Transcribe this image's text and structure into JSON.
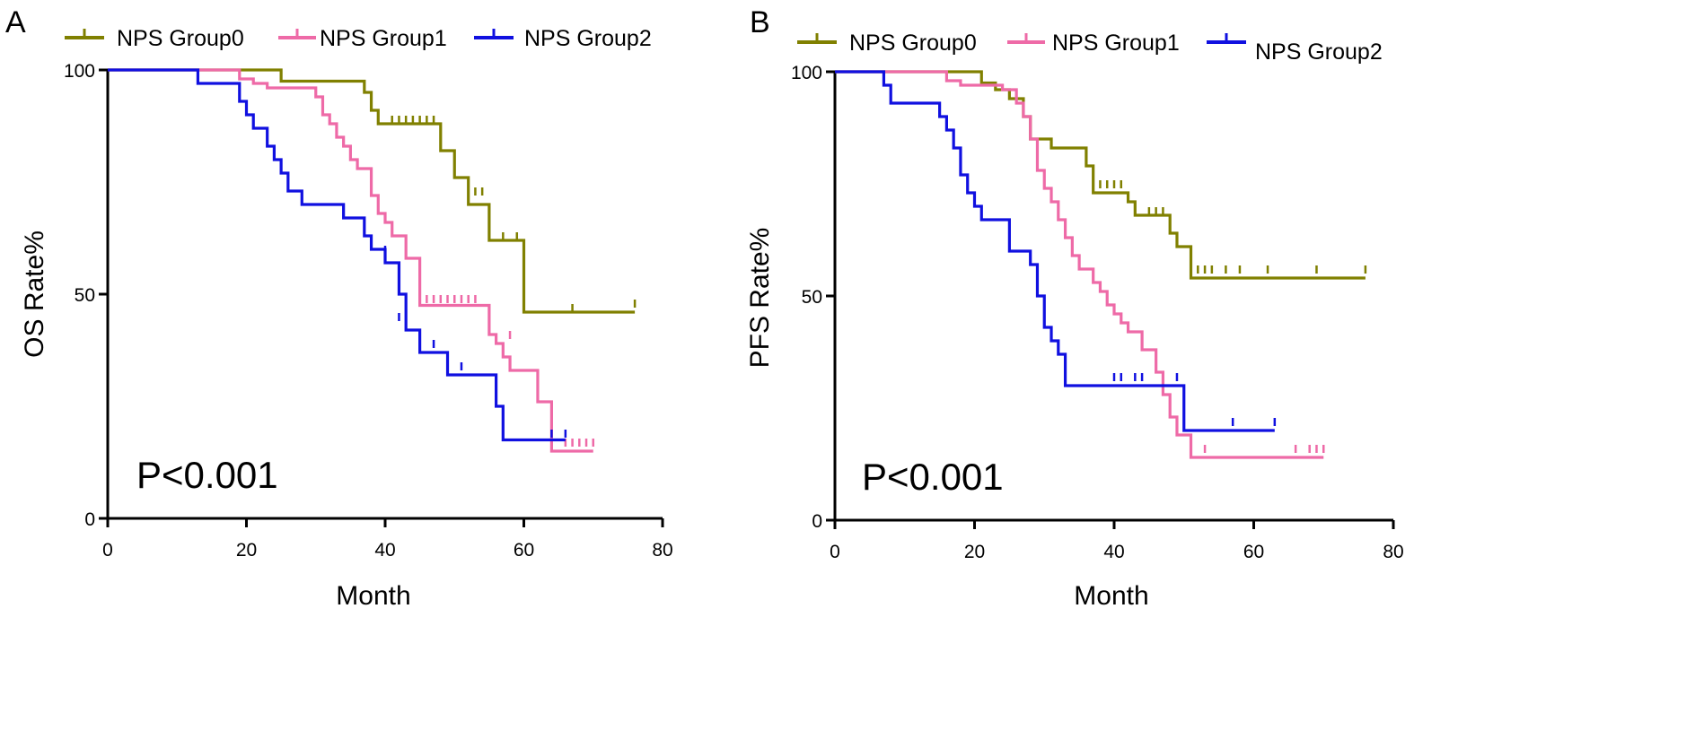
{
  "colors": {
    "group0": "#808000",
    "group1": "#ee6aa7",
    "group2": "#1010e0",
    "axis": "#000000"
  },
  "chart_data": [
    {
      "type": "line",
      "panel": "A",
      "step": true,
      "xlabel": "Month",
      "ylabel": "OS Rate%",
      "xlim": [
        0,
        80
      ],
      "ylim": [
        0,
        100
      ],
      "xticks": [
        0,
        20,
        40,
        60,
        80
      ],
      "xtick_labels": [
        "0",
        "20",
        "40",
        "60",
        "80"
      ],
      "yticks": [
        0,
        50,
        100
      ],
      "ytick_labels": [
        "0",
        "50",
        "100"
      ],
      "annotation": "P<0.001",
      "legend": [
        "NPS Group0",
        "NPS Group1",
        "NPS Group2"
      ],
      "series": [
        {
          "name": "NPS Group0",
          "color": "#808000",
          "steps": [
            [
              0,
              100
            ],
            [
              25,
              97.5
            ],
            [
              37,
              95
            ],
            [
              38,
              91
            ],
            [
              39,
              88
            ],
            [
              48,
              82
            ],
            [
              50,
              76
            ],
            [
              52,
              70
            ],
            [
              55,
              62
            ],
            [
              60,
              46
            ],
            [
              76,
              46
            ]
          ],
          "censor": [
            [
              41,
              88
            ],
            [
              42,
              88
            ],
            [
              43,
              88
            ],
            [
              44,
              88
            ],
            [
              45,
              88
            ],
            [
              46,
              88
            ],
            [
              47,
              88
            ],
            [
              53,
              72
            ],
            [
              54,
              72
            ],
            [
              57,
              62
            ],
            [
              59,
              62
            ],
            [
              67,
              46
            ],
            [
              76,
              47
            ]
          ]
        },
        {
          "name": "NPS Group1",
          "color": "#ee6aa7",
          "steps": [
            [
              0,
              100
            ],
            [
              19,
              98
            ],
            [
              21,
              97
            ],
            [
              23,
              96
            ],
            [
              30,
              94
            ],
            [
              31,
              90
            ],
            [
              32,
              88
            ],
            [
              33,
              85
            ],
            [
              34,
              83
            ],
            [
              35,
              80
            ],
            [
              36,
              78
            ],
            [
              38,
              72
            ],
            [
              39,
              68
            ],
            [
              40,
              66
            ],
            [
              41,
              63
            ],
            [
              43,
              58
            ],
            [
              45,
              47.5
            ],
            [
              55,
              41
            ],
            [
              56,
              39
            ],
            [
              57,
              36
            ],
            [
              58,
              33
            ],
            [
              62,
              26
            ],
            [
              64,
              15
            ],
            [
              70,
              15
            ]
          ],
          "censor": [
            [
              46,
              48
            ],
            [
              47,
              48
            ],
            [
              48,
              48
            ],
            [
              49,
              48
            ],
            [
              50,
              48
            ],
            [
              51,
              48
            ],
            [
              52,
              48
            ],
            [
              53,
              48
            ],
            [
              58,
              40
            ],
            [
              66,
              16
            ],
            [
              67,
              16
            ],
            [
              68,
              16
            ],
            [
              69,
              16
            ],
            [
              70,
              16
            ]
          ]
        },
        {
          "name": "NPS Group2",
          "color": "#1010e0",
          "steps": [
            [
              0,
              100
            ],
            [
              13,
              97
            ],
            [
              19,
              93
            ],
            [
              20,
              90
            ],
            [
              21,
              87
            ],
            [
              23,
              83
            ],
            [
              24,
              80
            ],
            [
              25,
              77
            ],
            [
              26,
              73
            ],
            [
              28,
              70
            ],
            [
              34,
              67
            ],
            [
              37,
              63
            ],
            [
              38,
              60
            ],
            [
              40,
              57
            ],
            [
              42,
              50
            ],
            [
              43,
              42
            ],
            [
              45,
              37
            ],
            [
              49,
              32
            ],
            [
              56,
              25
            ],
            [
              57,
              17.5
            ],
            [
              66,
              17.5
            ]
          ],
          "censor": [
            [
              40,
              59
            ],
            [
              42,
              44
            ],
            [
              47,
              38
            ],
            [
              51,
              33
            ],
            [
              64,
              18
            ],
            [
              66,
              18
            ]
          ]
        }
      ]
    },
    {
      "type": "line",
      "panel": "B",
      "step": true,
      "xlabel": "Month",
      "ylabel": "PFS Rate%",
      "xlim": [
        0,
        80
      ],
      "ylim": [
        0,
        100
      ],
      "xticks": [
        0,
        20,
        40,
        60,
        80
      ],
      "xtick_labels": [
        "0",
        "20",
        "40",
        "60",
        "80"
      ],
      "yticks": [
        0,
        50,
        100
      ],
      "ytick_labels": [
        "0",
        "50",
        "100"
      ],
      "annotation": "P<0.001",
      "legend": [
        "NPS Group0",
        "NPS Group1",
        "NPS Group2"
      ],
      "series": [
        {
          "name": "NPS Group0",
          "color": "#808000",
          "steps": [
            [
              0,
              100
            ],
            [
              21,
              97.5
            ],
            [
              23,
              96
            ],
            [
              25,
              94
            ],
            [
              27,
              90
            ],
            [
              28,
              85
            ],
            [
              31,
              83
            ],
            [
              36,
              79
            ],
            [
              37,
              73
            ],
            [
              42,
              71
            ],
            [
              43,
              68
            ],
            [
              48,
              64
            ],
            [
              49,
              61
            ],
            [
              51,
              54
            ],
            [
              76,
              54
            ]
          ],
          "censor": [
            [
              38,
              74
            ],
            [
              39,
              74
            ],
            [
              40,
              74
            ],
            [
              41,
              74
            ],
            [
              45,
              68
            ],
            [
              46,
              68
            ],
            [
              47,
              68
            ],
            [
              52,
              55
            ],
            [
              53,
              55
            ],
            [
              54,
              55
            ],
            [
              56,
              55
            ],
            [
              58,
              55
            ],
            [
              62,
              55
            ],
            [
              69,
              55
            ],
            [
              76,
              55
            ]
          ]
        },
        {
          "name": "NPS Group1",
          "color": "#ee6aa7",
          "steps": [
            [
              0,
              100
            ],
            [
              16,
              98
            ],
            [
              18,
              97
            ],
            [
              24,
              96
            ],
            [
              26,
              93
            ],
            [
              27,
              90
            ],
            [
              28,
              85
            ],
            [
              29,
              78
            ],
            [
              30,
              74
            ],
            [
              31,
              71
            ],
            [
              32,
              67
            ],
            [
              33,
              63
            ],
            [
              34,
              59
            ],
            [
              35,
              56
            ],
            [
              37,
              53
            ],
            [
              38,
              51
            ],
            [
              39,
              48
            ],
            [
              40,
              46
            ],
            [
              41,
              44
            ],
            [
              42,
              42
            ],
            [
              44,
              38
            ],
            [
              46,
              33
            ],
            [
              47,
              28
            ],
            [
              48,
              23
            ],
            [
              49,
              19
            ],
            [
              51,
              14
            ],
            [
              70,
              14
            ]
          ],
          "censor": [
            [
              53,
              15
            ],
            [
              66,
              15
            ],
            [
              68,
              15
            ],
            [
              69,
              15
            ],
            [
              70,
              15
            ]
          ]
        },
        {
          "name": "NPS Group2",
          "color": "#1010e0",
          "steps": [
            [
              0,
              100
            ],
            [
              7,
              97
            ],
            [
              8,
              93
            ],
            [
              15,
              90
            ],
            [
              16,
              87
            ],
            [
              17,
              83
            ],
            [
              18,
              77
            ],
            [
              19,
              73
            ],
            [
              20,
              70
            ],
            [
              21,
              67
            ],
            [
              25,
              60
            ],
            [
              28,
              57
            ],
            [
              29,
              50
            ],
            [
              30,
              43
            ],
            [
              31,
              40
            ],
            [
              32,
              37
            ],
            [
              33,
              30
            ],
            [
              47,
              30
            ],
            [
              50,
              20
            ],
            [
              63,
              20
            ]
          ],
          "censor": [
            [
              40,
              31
            ],
            [
              41,
              31
            ],
            [
              43,
              31
            ],
            [
              44,
              31
            ],
            [
              49,
              31
            ],
            [
              57,
              21
            ],
            [
              63,
              21
            ]
          ]
        }
      ]
    }
  ]
}
